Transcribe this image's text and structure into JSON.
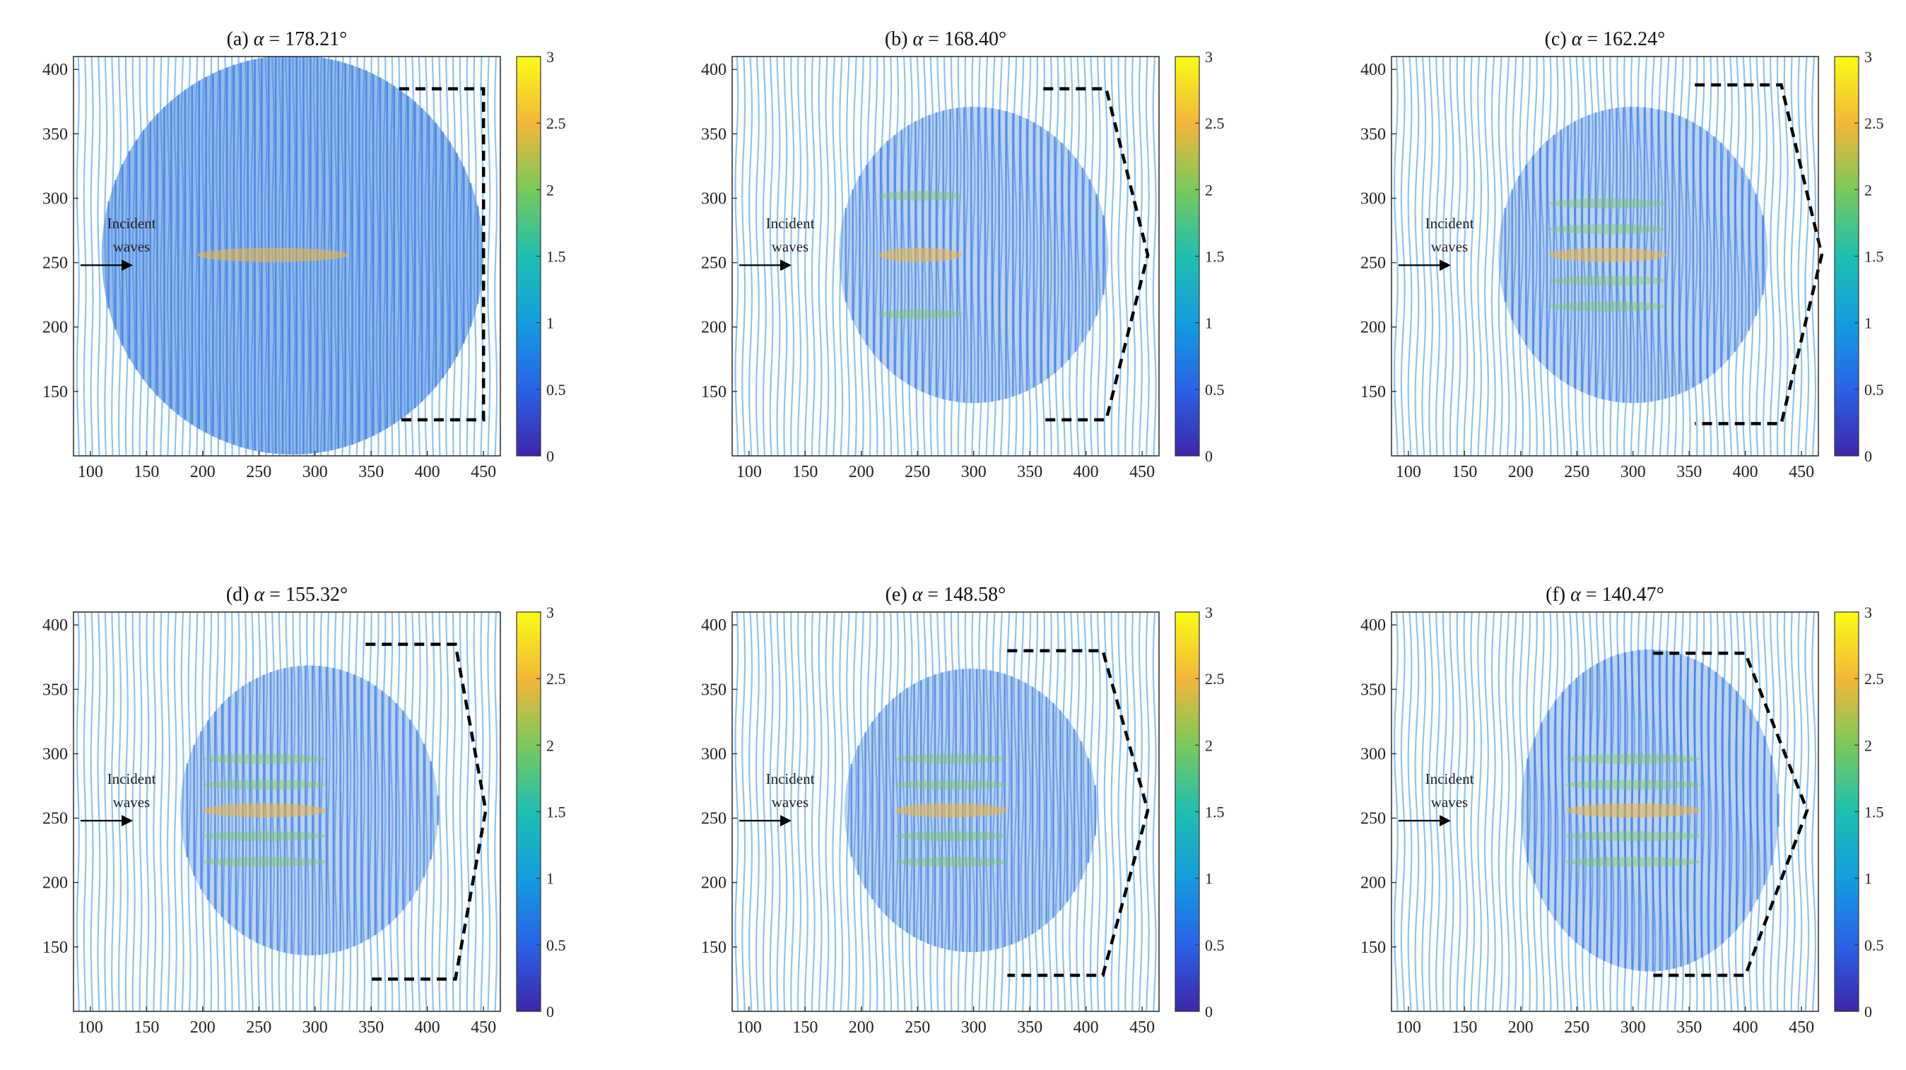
{
  "figure": {
    "chart_data": [
      {
        "type": "heatmap",
        "label": "(a)",
        "symbol": "α",
        "angle": "= 178.21°",
        "xlim": [
          85,
          465
        ],
        "ylim": [
          100,
          410
        ],
        "xticks": [
          "100",
          "150",
          "200",
          "250",
          "300",
          "350",
          "400",
          "450"
        ],
        "yticks": [
          "150",
          "200",
          "250",
          "300",
          "350",
          "400"
        ],
        "colorbar_ticks": [
          "0",
          "0.5",
          "1",
          "1.5",
          "2",
          "2.5",
          "3"
        ],
        "clim": [
          0,
          3
        ],
        "annotation_line1": "Incident",
        "annotation_line2": "waves",
        "field_region": [
          110,
          450,
          100,
          410
        ],
        "bright_x_extent": [
          195,
          330
        ],
        "outline": [
          [
            375,
            385
          ],
          [
            450,
            385
          ],
          [
            450,
            128
          ],
          [
            375,
            128
          ]
        ]
      },
      {
        "type": "heatmap",
        "label": "(b)",
        "symbol": "α",
        "angle": "= 168.40°",
        "xlim": [
          85,
          465
        ],
        "ylim": [
          100,
          410
        ],
        "xticks": [
          "100",
          "150",
          "200",
          "250",
          "300",
          "350",
          "400",
          "450"
        ],
        "yticks": [
          "150",
          "200",
          "250",
          "300",
          "350",
          "400"
        ],
        "colorbar_ticks": [
          "0",
          "0.5",
          "1",
          "1.5",
          "2",
          "2.5",
          "3"
        ],
        "clim": [
          0,
          3
        ],
        "annotation_line1": "Incident",
        "annotation_line2": "waves",
        "field_region": [
          180,
          420,
          140,
          370
        ],
        "bright_x_extent": [
          215,
          290
        ],
        "outline": [
          [
            362,
            385
          ],
          [
            418,
            385
          ],
          [
            455,
            256
          ],
          [
            418,
            128
          ],
          [
            362,
            128
          ]
        ]
      },
      {
        "type": "heatmap",
        "label": "(c)",
        "symbol": "α",
        "angle": "= 162.24°",
        "xlim": [
          85,
          465
        ],
        "ylim": [
          100,
          410
        ],
        "xticks": [
          "100",
          "150",
          "200",
          "250",
          "300",
          "350",
          "400",
          "450"
        ],
        "yticks": [
          "150",
          "200",
          "250",
          "300",
          "350",
          "400"
        ],
        "colorbar_ticks": [
          "0",
          "0.5",
          "1",
          "1.5",
          "2",
          "2.5",
          "3"
        ],
        "clim": [
          0,
          3
        ],
        "annotation_line1": "Incident",
        "annotation_line2": "waves",
        "field_region": [
          180,
          420,
          140,
          370
        ],
        "bright_x_extent": [
          225,
          330
        ],
        "outline": [
          [
            355,
            388
          ],
          [
            432,
            388
          ],
          [
            468,
            256
          ],
          [
            432,
            125
          ],
          [
            355,
            125
          ]
        ]
      },
      {
        "type": "heatmap",
        "label": "(d)",
        "symbol": "α",
        "angle": "= 155.32°",
        "xlim": [
          85,
          465
        ],
        "ylim": [
          100,
          410
        ],
        "xticks": [
          "100",
          "150",
          "200",
          "250",
          "300",
          "350",
          "400",
          "450"
        ],
        "yticks": [
          "150",
          "200",
          "250",
          "300",
          "350",
          "400"
        ],
        "colorbar_ticks": [
          "0",
          "0.5",
          "1",
          "1.5",
          "2",
          "2.5",
          "3"
        ],
        "clim": [
          0,
          3
        ],
        "annotation_line1": "Incident",
        "annotation_line2": "waves",
        "field_region": [
          180,
          410,
          140,
          365
        ],
        "bright_x_extent": [
          200,
          310
        ],
        "outline": [
          [
            345,
            385
          ],
          [
            425,
            385
          ],
          [
            452,
            256
          ],
          [
            425,
            125
          ],
          [
            345,
            125
          ]
        ]
      },
      {
        "type": "heatmap",
        "label": "(e)",
        "symbol": "α",
        "angle": "= 148.58°",
        "xlim": [
          85,
          465
        ],
        "ylim": [
          100,
          410
        ],
        "xticks": [
          "100",
          "150",
          "200",
          "250",
          "300",
          "350",
          "400",
          "450"
        ],
        "yticks": [
          "150",
          "200",
          "250",
          "300",
          "350",
          "400"
        ],
        "colorbar_ticks": [
          "0",
          "0.5",
          "1",
          "1.5",
          "2",
          "2.5",
          "3"
        ],
        "clim": [
          0,
          3
        ],
        "annotation_line1": "Incident",
        "annotation_line2": "waves",
        "field_region": [
          185,
          410,
          140,
          360
        ],
        "bright_x_extent": [
          230,
          330
        ],
        "outline": [
          [
            330,
            380
          ],
          [
            415,
            380
          ],
          [
            455,
            256
          ],
          [
            415,
            128
          ],
          [
            330,
            128
          ]
        ]
      },
      {
        "type": "heatmap",
        "label": "(f)",
        "symbol": "α",
        "angle": "= 140.47°",
        "xlim": [
          85,
          465
        ],
        "ylim": [
          100,
          410
        ],
        "xticks": [
          "100",
          "150",
          "200",
          "250",
          "300",
          "350",
          "400",
          "450"
        ],
        "yticks": [
          "150",
          "200",
          "250",
          "300",
          "350",
          "400"
        ],
        "colorbar_ticks": [
          "0",
          "0.5",
          "1",
          "1.5",
          "2",
          "2.5",
          "3"
        ],
        "clim": [
          0,
          3
        ],
        "annotation_line1": "Incident",
        "annotation_line2": "waves",
        "field_region": [
          200,
          430,
          130,
          380
        ],
        "bright_x_extent": [
          240,
          360
        ],
        "outline": [
          [
            318,
            378
          ],
          [
            400,
            378
          ],
          [
            455,
            256
          ],
          [
            400,
            128
          ],
          [
            318,
            128
          ]
        ]
      }
    ]
  },
  "colors": {
    "axis": "#333333",
    "outline": "#000000",
    "contour_light": "#7ab8ee",
    "contour_mid": "#3a82d8",
    "colormap": [
      "#3e26a8",
      "#2a63e8",
      "#139cdf",
      "#1ebfb0",
      "#7cc95a",
      "#f3b63a",
      "#f9fb15"
    ]
  }
}
